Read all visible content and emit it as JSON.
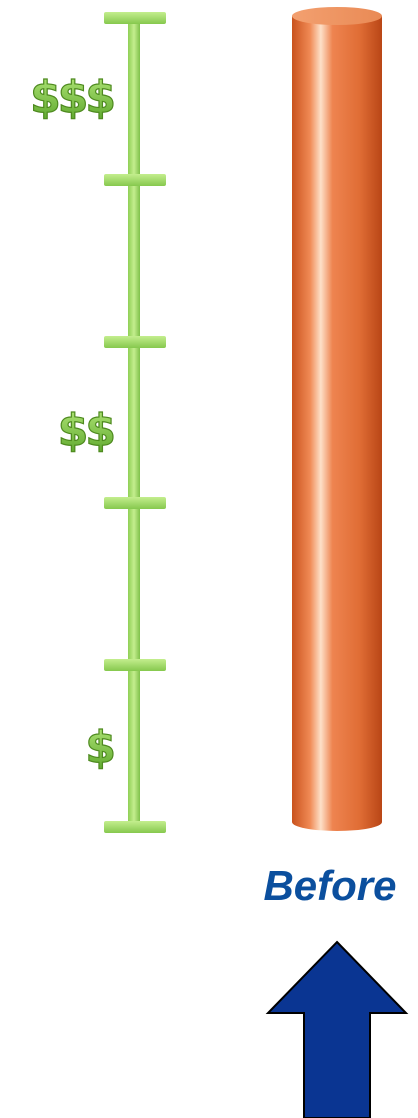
{
  "scale_labels": [
    "$$$",
    "$$",
    "$"
  ],
  "caption": "Before"
}
